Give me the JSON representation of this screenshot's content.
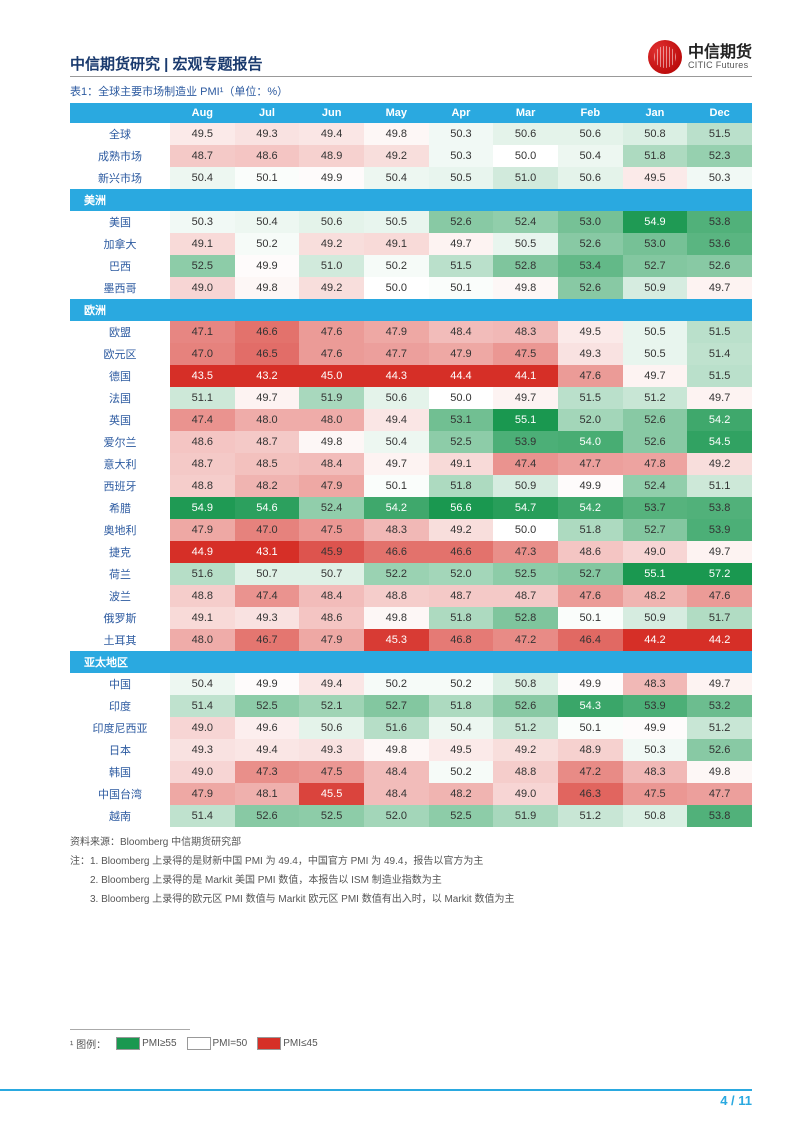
{
  "header": {
    "title": "中信期货研究 | 宏观专题报告",
    "logo_cn": "中信期货",
    "logo_en": "CITIC Futures"
  },
  "tableTitle": "表1：全球主要市场制造业 PMI¹（单位：%）",
  "months": [
    "Aug",
    "Jul",
    "Jun",
    "May",
    "Apr",
    "Mar",
    "Feb",
    "Jan",
    "Dec"
  ],
  "heatmap": {
    "high_color": "#1a9850",
    "mid_color": "#ffffff",
    "low_color": "#d62f27",
    "high_threshold": 55,
    "mid_value": 50,
    "low_threshold": 45
  },
  "sections": [
    {
      "name": "",
      "rows": [
        {
          "label": "全球",
          "vals": [
            49.5,
            49.3,
            49.4,
            49.8,
            50.3,
            50.6,
            50.6,
            50.8,
            51.5
          ]
        },
        {
          "label": "成熟市场",
          "vals": [
            48.7,
            48.6,
            48.9,
            49.2,
            50.3,
            50.0,
            50.4,
            51.8,
            52.3
          ]
        },
        {
          "label": "新兴市场",
          "vals": [
            50.4,
            50.1,
            49.9,
            50.4,
            50.5,
            51.0,
            50.6,
            49.5,
            50.3
          ]
        }
      ]
    },
    {
      "name": "美洲",
      "rows": [
        {
          "label": "美国",
          "vals": [
            50.3,
            50.4,
            50.6,
            50.5,
            52.6,
            52.4,
            53.0,
            54.9,
            53.8
          ]
        },
        {
          "label": "加拿大",
          "vals": [
            49.1,
            50.2,
            49.2,
            49.1,
            49.7,
            50.5,
            52.6,
            53.0,
            53.6
          ]
        },
        {
          "label": "巴西",
          "vals": [
            52.5,
            49.9,
            51.0,
            50.2,
            51.5,
            52.8,
            53.4,
            52.7,
            52.6
          ]
        },
        {
          "label": "墨西哥",
          "vals": [
            49.0,
            49.8,
            49.2,
            50.0,
            50.1,
            49.8,
            52.6,
            50.9,
            49.7
          ]
        }
      ]
    },
    {
      "name": "欧洲",
      "rows": [
        {
          "label": "欧盟",
          "vals": [
            47.1,
            46.6,
            47.6,
            47.9,
            48.4,
            48.3,
            49.5,
            50.5,
            51.5
          ]
        },
        {
          "label": "欧元区",
          "vals": [
            47.0,
            46.5,
            47.6,
            47.7,
            47.9,
            47.5,
            49.3,
            50.5,
            51.4
          ]
        },
        {
          "label": "德国",
          "vals": [
            43.5,
            43.2,
            45.0,
            44.3,
            44.4,
            44.1,
            47.6,
            49.7,
            51.5
          ]
        },
        {
          "label": "法国",
          "vals": [
            51.1,
            49.7,
            51.9,
            50.6,
            50.0,
            49.7,
            51.5,
            51.2,
            49.7
          ]
        },
        {
          "label": "英国",
          "vals": [
            47.4,
            48.0,
            48.0,
            49.4,
            53.1,
            55.1,
            52.0,
            52.6,
            54.2
          ]
        },
        {
          "label": "爱尔兰",
          "vals": [
            48.6,
            48.7,
            49.8,
            50.4,
            52.5,
            53.9,
            54.0,
            52.6,
            54.5
          ]
        },
        {
          "label": "意大利",
          "vals": [
            48.7,
            48.5,
            48.4,
            49.7,
            49.1,
            47.4,
            47.7,
            47.8,
            49.2
          ]
        },
        {
          "label": "西班牙",
          "vals": [
            48.8,
            48.2,
            47.9,
            50.1,
            51.8,
            50.9,
            49.9,
            52.4,
            51.1
          ]
        },
        {
          "label": "希腊",
          "vals": [
            54.9,
            54.6,
            52.4,
            54.2,
            56.6,
            54.7,
            54.2,
            53.7,
            53.8
          ]
        },
        {
          "label": "奥地利",
          "vals": [
            47.9,
            47.0,
            47.5,
            48.3,
            49.2,
            50.0,
            51.8,
            52.7,
            53.9
          ]
        },
        {
          "label": "捷克",
          "vals": [
            44.9,
            43.1,
            45.9,
            46.6,
            46.6,
            47.3,
            48.6,
            49.0,
            49.7
          ]
        },
        {
          "label": "荷兰",
          "vals": [
            51.6,
            50.7,
            50.7,
            52.2,
            52.0,
            52.5,
            52.7,
            55.1,
            57.2
          ]
        },
        {
          "label": "波兰",
          "vals": [
            48.8,
            47.4,
            48.4,
            48.8,
            48.7,
            48.7,
            47.6,
            48.2,
            47.6
          ]
        },
        {
          "label": "俄罗斯",
          "vals": [
            49.1,
            49.3,
            48.6,
            49.8,
            51.8,
            52.8,
            50.1,
            50.9,
            51.7
          ]
        },
        {
          "label": "土耳其",
          "vals": [
            48.0,
            46.7,
            47.9,
            45.3,
            46.8,
            47.2,
            46.4,
            44.2,
            44.2
          ]
        }
      ]
    },
    {
      "name": "亚太地区",
      "rows": [
        {
          "label": "中国",
          "vals": [
            50.4,
            49.9,
            49.4,
            50.2,
            50.2,
            50.8,
            49.9,
            48.3,
            49.7
          ]
        },
        {
          "label": "印度",
          "vals": [
            51.4,
            52.5,
            52.1,
            52.7,
            51.8,
            52.6,
            54.3,
            53.9,
            53.2
          ]
        },
        {
          "label": "印度尼西亚",
          "vals": [
            49.0,
            49.6,
            50.6,
            51.6,
            50.4,
            51.2,
            50.1,
            49.9,
            51.2
          ]
        },
        {
          "label": "日本",
          "vals": [
            49.3,
            49.4,
            49.3,
            49.8,
            49.5,
            49.2,
            48.9,
            50.3,
            52.6
          ]
        },
        {
          "label": "韩国",
          "vals": [
            49.0,
            47.3,
            47.5,
            48.4,
            50.2,
            48.8,
            47.2,
            48.3,
            49.8
          ]
        },
        {
          "label": "中国台湾",
          "vals": [
            47.9,
            48.1,
            45.5,
            48.4,
            48.2,
            49.0,
            46.3,
            47.5,
            47.7
          ]
        },
        {
          "label": "越南",
          "vals": [
            51.4,
            52.6,
            52.5,
            52.0,
            52.5,
            51.9,
            51.2,
            50.8,
            53.8
          ]
        }
      ]
    }
  ],
  "source": "资料来源：Bloomberg 中信期货研究部",
  "notes": [
    "注：1. Bloomberg 上录得的是财新中国 PMI 为 49.4，中国官方 PMI 为 49.4，报告以官方为主",
    "　　2. Bloomberg 上录得的是 Markit 美国 PMI 数值，本报告以 ISM 制造业指数为主",
    "　　3. Bloomberg 上录得的欧元区 PMI 数值与 Markit 欧元区 PMI 数值有出入时，以 Markit 数值为主"
  ],
  "footnote": {
    "prefix": "¹ 图例：",
    "items": [
      {
        "color": "#1a9850",
        "label": "PMI≥55"
      },
      {
        "color": "#ffffff",
        "label": "PMI=50"
      },
      {
        "color": "#d62f27",
        "label": "PMI≤45"
      }
    ]
  },
  "pageNumber": "4 / 11"
}
